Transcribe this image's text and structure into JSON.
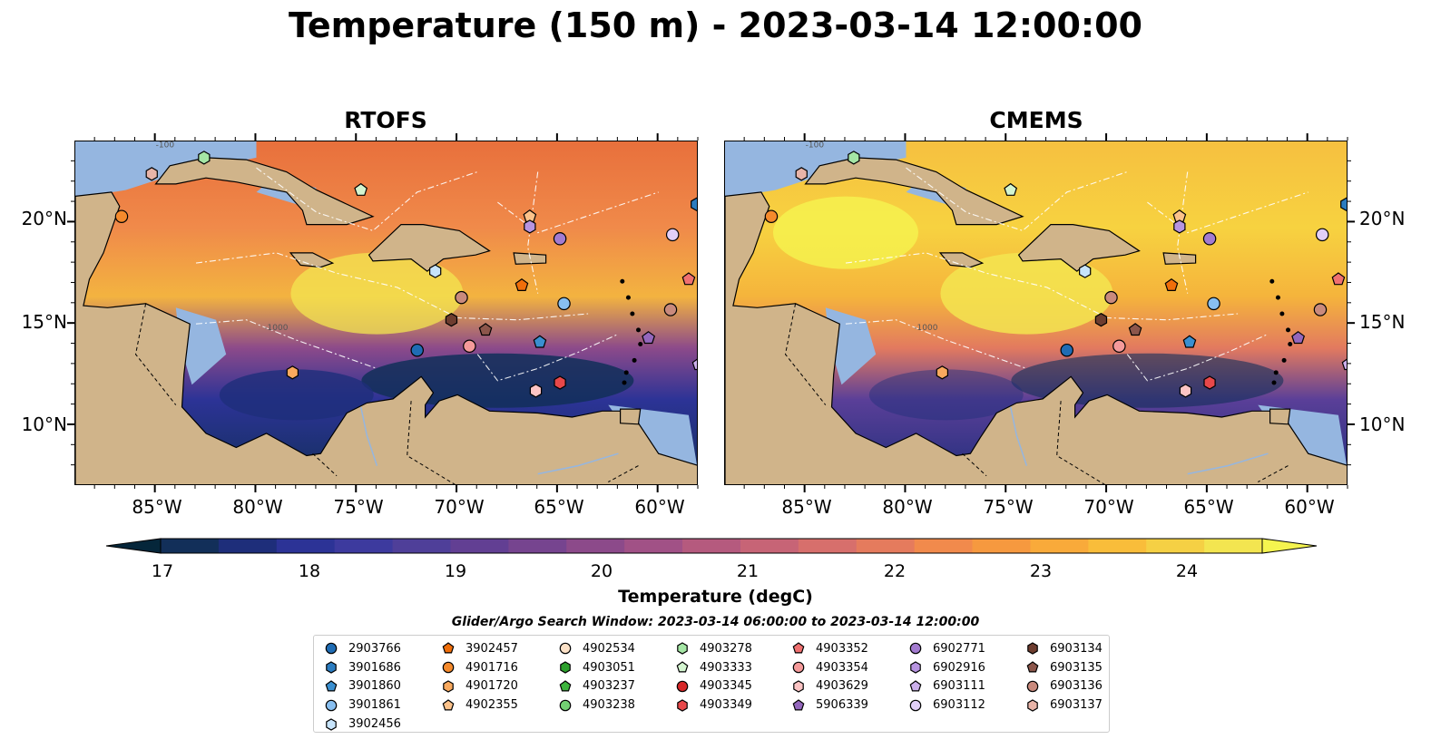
{
  "title": "Temperature (150 m) - 2023-03-14 12:00:00",
  "panels": [
    {
      "title": "RTOFS"
    },
    {
      "title": "CMEMS"
    }
  ],
  "axes": {
    "lon_labels": [
      "85°W",
      "80°W",
      "75°W",
      "70°W",
      "65°W",
      "60°W"
    ],
    "lat_labels": [
      "20°N",
      "15°N",
      "10°N"
    ],
    "lon_range": [
      -89,
      -58
    ],
    "lat_range": [
      7,
      24
    ]
  },
  "contour_labels": [
    "-100",
    "-1000"
  ],
  "colorbar": {
    "label": "Temperature (degC)",
    "ticks": [
      "17",
      "18",
      "19",
      "20",
      "21",
      "22",
      "23",
      "24"
    ],
    "range": [
      16.5,
      24.5
    ],
    "extend": "both",
    "colors": [
      "#05263a",
      "#122f59",
      "#1e2e7a",
      "#2c3396",
      "#3d3a9e",
      "#4f3f99",
      "#623f93",
      "#76448f",
      "#8c4a8a",
      "#a15186",
      "#b55a7e",
      "#c76476",
      "#d76f6c",
      "#e57b5d",
      "#f18a4c",
      "#f6993f",
      "#f9aa3a",
      "#f9bd3a",
      "#f5d044",
      "#f3e550",
      "#f5f44f"
    ]
  },
  "map_colors": {
    "land": "#d0b48a",
    "shelf": "#95b6e0",
    "deep_cold": "#04202e"
  },
  "legend": {
    "title": "Glider/Argo Search Window: 2023-03-14 06:00:00 to 2023-03-14 12:00:00",
    "items": [
      {
        "label": "2903766",
        "marker": "circle",
        "color": "#1f6cb4"
      },
      {
        "label": "3901686",
        "marker": "hexagon",
        "color": "#2b7cc0"
      },
      {
        "label": "3901860",
        "marker": "pentagon",
        "color": "#3a8fd0"
      },
      {
        "label": "3901861",
        "marker": "circle",
        "color": "#88bff0"
      },
      {
        "label": "3902456",
        "marker": "hexagon",
        "color": "#c7e4fb"
      },
      {
        "label": "3902457",
        "marker": "pentagon",
        "color": "#f06e0a"
      },
      {
        "label": "4901716",
        "marker": "circle",
        "color": "#f58a2c"
      },
      {
        "label": "4901720",
        "marker": "hexagon",
        "color": "#f9a95e"
      },
      {
        "label": "4902355",
        "marker": "pentagon",
        "color": "#fcc28a"
      },
      {
        "label": "4902534",
        "marker": "circle",
        "color": "#fde2c8"
      },
      {
        "label": "4903051",
        "marker": "hexagon",
        "color": "#2ca02c"
      },
      {
        "label": "4903237",
        "marker": "pentagon",
        "color": "#3cb43c"
      },
      {
        "label": "4903238",
        "marker": "circle",
        "color": "#73d073"
      },
      {
        "label": "4903278",
        "marker": "hexagon",
        "color": "#a5e6a5"
      },
      {
        "label": "4903333",
        "marker": "pentagon",
        "color": "#d4f5d0"
      },
      {
        "label": "4903345",
        "marker": "circle",
        "color": "#d62728"
      },
      {
        "label": "4903349",
        "marker": "hexagon",
        "color": "#e8484a"
      },
      {
        "label": "4903352",
        "marker": "pentagon",
        "color": "#f07070"
      },
      {
        "label": "4903354",
        "marker": "circle",
        "color": "#f59a9a"
      },
      {
        "label": "4903629",
        "marker": "hexagon",
        "color": "#fcc4c4"
      },
      {
        "label": "5906339",
        "marker": "pentagon",
        "color": "#9467bd"
      },
      {
        "label": "6902771",
        "marker": "circle",
        "color": "#a37bd0"
      },
      {
        "label": "6902916",
        "marker": "hexagon",
        "color": "#b794e0"
      },
      {
        "label": "6903111",
        "marker": "pentagon",
        "color": "#ccb0ec"
      },
      {
        "label": "6903112",
        "marker": "circle",
        "color": "#e2cff8"
      },
      {
        "label": "6903134",
        "marker": "hexagon",
        "color": "#6e3d2f"
      },
      {
        "label": "6903135",
        "marker": "pentagon",
        "color": "#8c564b"
      },
      {
        "label": "6903136",
        "marker": "circle",
        "color": "#c98a7d"
      },
      {
        "label": "6903137",
        "marker": "hexagon",
        "color": "#e8b4a8"
      }
    ],
    "columns": [
      5,
      4,
      4,
      4,
      4,
      4,
      4
    ]
  },
  "observations": [
    {
      "id": "6903137",
      "lon": -85.2,
      "lat": 22.4,
      "panel_both": true
    },
    {
      "id": "4901716",
      "lon": -86.7,
      "lat": 20.3
    },
    {
      "id": "4903278",
      "lon": -82.6,
      "lat": 23.2
    },
    {
      "id": "4903333",
      "lon": -74.8,
      "lat": 21.6
    },
    {
      "id": "3902456",
      "lon": -71.1,
      "lat": 17.6
    },
    {
      "id": "4902355",
      "lon": -66.4,
      "lat": 20.3
    },
    {
      "id": "6902916",
      "lon": -66.4,
      "lat": 19.8
    },
    {
      "id": "6902771",
      "lon": -64.9,
      "lat": 19.2
    },
    {
      "id": "3902457",
      "lon": -66.8,
      "lat": 16.9
    },
    {
      "id": "6903136",
      "lon": -69.8,
      "lat": 16.3
    },
    {
      "id": "3901861",
      "lon": -64.7,
      "lat": 16.0
    },
    {
      "id": "6903134",
      "lon": -70.3,
      "lat": 15.2
    },
    {
      "id": "6903135",
      "lon": -68.6,
      "lat": 14.7
    },
    {
      "id": "6903112",
      "lon": -59.3,
      "lat": 19.4
    },
    {
      "id": "4903352",
      "lon": -58.5,
      "lat": 17.2
    },
    {
      "id": "2903766",
      "lon": -72.0,
      "lat": 13.7
    },
    {
      "id": "4903354",
      "lon": -69.4,
      "lat": 13.9
    },
    {
      "id": "3901860",
      "lon": -65.9,
      "lat": 14.1
    },
    {
      "id": "5906339",
      "lon": -60.5,
      "lat": 14.3
    },
    {
      "id": "6903136",
      "lon": -59.4,
      "lat": 15.7
    },
    {
      "id": "3901686",
      "lon": -58.1,
      "lat": 20.9
    },
    {
      "id": "6903111",
      "lon": -58.0,
      "lat": 13.0
    },
    {
      "id": "4901720",
      "lon": -78.2,
      "lat": 12.6
    },
    {
      "id": "4903349",
      "lon": -64.9,
      "lat": 12.1
    },
    {
      "id": "4903629",
      "lon": -66.1,
      "lat": 11.7
    }
  ]
}
